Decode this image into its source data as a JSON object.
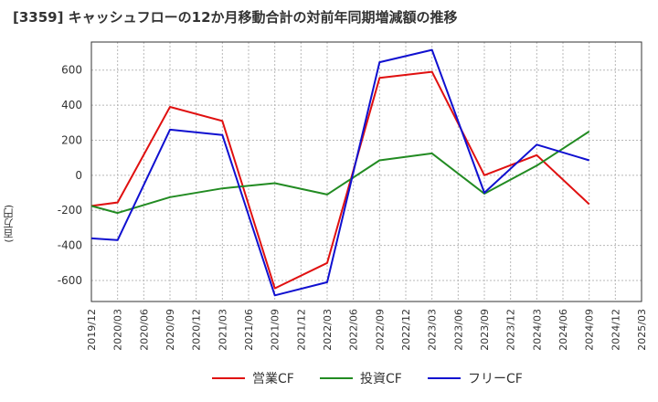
{
  "chart_data": {
    "type": "line",
    "title": "[3359]  キャッシュフローの12か月移動合計の対前年同期増減額の推移",
    "ylabel": "(百万円)",
    "xlabel": "",
    "ylim": [
      -720,
      760
    ],
    "yticks": [
      -600,
      -400,
      -200,
      0,
      200,
      400,
      600
    ],
    "categories": [
      "2019/12",
      "2020/03",
      "2020/06",
      "2020/09",
      "2020/12",
      "2021/03",
      "2021/06",
      "2021/09",
      "2021/12",
      "2022/03",
      "2022/06",
      "2022/09",
      "2022/12",
      "2023/03",
      "2023/06",
      "2023/09",
      "2023/12",
      "2024/03",
      "2024/06",
      "2024/09",
      "2024/12",
      "2025/03"
    ],
    "series": [
      {
        "name": "営業CF",
        "color": "#e01010",
        "values": [
          -175,
          -155,
          null,
          390,
          null,
          310,
          null,
          -645,
          null,
          -500,
          null,
          555,
          null,
          590,
          null,
          0,
          null,
          115,
          null,
          -165,
          null,
          null
        ]
      },
      {
        "name": "投資CF",
        "color": "#228b22",
        "values": [
          -175,
          -215,
          null,
          -125,
          null,
          -75,
          null,
          -45,
          null,
          -110,
          null,
          85,
          null,
          125,
          null,
          -105,
          null,
          55,
          null,
          250,
          null,
          null
        ]
      },
      {
        "name": "フリーCF",
        "color": "#1010d0",
        "values": [
          -360,
          -370,
          null,
          260,
          null,
          230,
          null,
          -685,
          null,
          -610,
          null,
          645,
          null,
          715,
          null,
          -100,
          null,
          175,
          null,
          85,
          null,
          null
        ]
      }
    ]
  }
}
